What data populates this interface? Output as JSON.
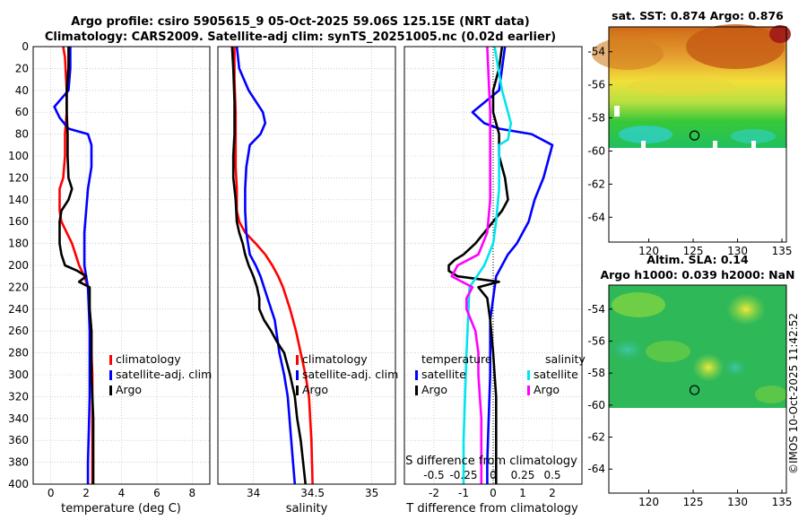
{
  "title": {
    "line1": "Argo profile: csiro 5905615_9 05-Oct-2025 59.06S 125.15E (NRT data)",
    "line2": "Climatology: CARS2009. Satellite-adj clim: synTS_20251005.nc (0.02d earlier)"
  },
  "watermark": "©IMOS 10-Oct-2025 11:42:52",
  "colors": {
    "climatology": "#ff0000",
    "satellite": "#0000ff",
    "argo": "#000000",
    "salinity_sat": "#00e5ee",
    "salinity_argo": "#ff00ff"
  },
  "chart_data": [
    {
      "type": "line",
      "name": "temperature",
      "xlabel": "temperature (deg C)",
      "xlim": [
        -1,
        9
      ],
      "ylim": [
        400,
        0
      ],
      "xticks": [
        0,
        2,
        4,
        6,
        8
      ],
      "yticks": [
        0,
        20,
        40,
        60,
        80,
        100,
        120,
        140,
        160,
        180,
        200,
        220,
        240,
        260,
        280,
        300,
        320,
        340,
        360,
        380,
        400
      ],
      "legend": [
        "climatology",
        "satellite-adj. clim",
        "Argo"
      ],
      "series": [
        {
          "name": "climatology",
          "color": "#ff0000",
          "x": [
            0.7,
            0.8,
            0.9,
            0.9,
            0.8,
            0.8,
            0.7,
            0.5,
            0.5,
            0.5,
            0.6,
            0.9,
            1.2,
            1.4,
            1.6,
            1.9,
            2.1,
            2.2,
            2.3,
            2.3,
            2.35,
            2.35,
            2.35,
            2.35,
            2.35
          ],
          "y": [
            0,
            10,
            40,
            60,
            80,
            100,
            120,
            130,
            140,
            150,
            160,
            170,
            180,
            190,
            200,
            210,
            220,
            240,
            260,
            280,
            300,
            320,
            350,
            380,
            400
          ]
        },
        {
          "name": "satellite-adj. clim",
          "color": "#0000ff",
          "x": [
            1.1,
            1.1,
            1.0,
            0.2,
            0.5,
            1.0,
            2.1,
            2.3,
            2.3,
            2.1,
            2.0,
            1.9,
            1.9,
            1.9,
            2.0,
            2.1,
            2.15,
            2.2,
            2.2,
            2.2,
            2.2,
            2.15,
            2.1,
            2.1
          ],
          "y": [
            0,
            20,
            40,
            55,
            65,
            75,
            80,
            90,
            110,
            130,
            150,
            170,
            190,
            200,
            210,
            220,
            240,
            260,
            280,
            300,
            320,
            350,
            380,
            400
          ]
        },
        {
          "name": "Argo",
          "color": "#000000",
          "x": [
            1.0,
            1.0,
            0.9,
            0.9,
            0.95,
            0.95,
            1.0,
            1.2,
            1.0,
            0.6,
            0.5,
            0.5,
            0.5,
            0.6,
            0.8,
            1.5,
            2.0,
            1.6,
            2.2,
            2.2,
            2.3,
            2.3,
            2.3,
            2.35,
            2.4,
            2.4,
            2.4,
            2.4
          ],
          "y": [
            0,
            20,
            40,
            60,
            80,
            100,
            120,
            130,
            140,
            150,
            160,
            170,
            180,
            190,
            200,
            205,
            210,
            215,
            220,
            240,
            260,
            280,
            300,
            320,
            340,
            360,
            380,
            400
          ]
        }
      ]
    },
    {
      "type": "line",
      "name": "salinity",
      "xlabel": "salinity",
      "xlim": [
        33.7,
        35.2
      ],
      "ylim": [
        400,
        0
      ],
      "xticks": [
        34,
        34.5,
        35
      ],
      "legend": [
        "climatology",
        "satellite-adj. clim",
        "Argo"
      ],
      "series": [
        {
          "name": "climatology",
          "color": "#ff0000",
          "x": [
            33.84,
            33.84,
            33.85,
            33.85,
            33.85,
            33.86,
            33.86,
            33.88,
            33.93,
            34.02,
            34.1,
            34.16,
            34.21,
            34.25,
            34.31,
            34.36,
            34.4,
            34.44,
            34.47,
            34.49,
            34.5
          ],
          "y": [
            0,
            30,
            60,
            90,
            110,
            130,
            150,
            160,
            170,
            180,
            190,
            200,
            210,
            220,
            240,
            260,
            280,
            300,
            320,
            360,
            400
          ]
        },
        {
          "name": "satellite-adj. clim",
          "color": "#0000ff",
          "x": [
            33.86,
            33.88,
            33.96,
            34.08,
            34.1,
            34.06,
            33.97,
            33.94,
            33.93,
            33.93,
            33.94,
            33.97,
            34.02,
            34.06,
            34.12,
            34.18,
            34.22,
            34.26,
            34.29,
            34.32,
            34.35
          ],
          "y": [
            0,
            20,
            40,
            60,
            70,
            80,
            90,
            110,
            130,
            150,
            170,
            190,
            200,
            210,
            230,
            250,
            280,
            300,
            320,
            360,
            400
          ]
        },
        {
          "name": "Argo",
          "color": "#000000",
          "x": [
            33.82,
            33.83,
            33.84,
            33.84,
            33.83,
            33.83,
            33.85,
            33.86,
            33.88,
            33.91,
            33.93,
            33.96,
            33.98,
            34.0,
            34.03,
            34.05,
            34.05,
            34.09,
            34.15,
            34.2,
            34.26,
            34.31,
            34.35,
            34.37,
            34.4,
            34.44
          ],
          "y": [
            0,
            20,
            50,
            80,
            100,
            120,
            140,
            160,
            170,
            180,
            190,
            200,
            205,
            210,
            220,
            230,
            240,
            250,
            260,
            270,
            280,
            300,
            320,
            340,
            360,
            400
          ]
        }
      ]
    },
    {
      "type": "line",
      "name": "difference",
      "xlabel": "T difference from climatology",
      "top_label": "S difference from climatology",
      "xlim": [
        -3,
        3
      ],
      "ylim": [
        400,
        0
      ],
      "xticks": [
        -2,
        -1,
        0,
        1,
        2
      ],
      "top_ticks": [
        -0.5,
        -0.25,
        0,
        0.25,
        0.5
      ],
      "legend_titles": [
        "temperature",
        "salinity"
      ],
      "legend": [
        "satellite",
        "Argo",
        "satellite",
        "Argo"
      ],
      "series": [
        {
          "name": "temperature satellite",
          "color": "#0000ff",
          "x": [
            0.4,
            0.3,
            0.2,
            -0.7,
            -0.3,
            0.2,
            1.3,
            2.0,
            1.9,
            1.7,
            1.4,
            1.2,
            1.0,
            0.8,
            0.5,
            0.3,
            0.1,
            0.0,
            -0.1,
            -0.1,
            -0.1,
            -0.15,
            -0.2,
            -0.2
          ],
          "y": [
            0,
            20,
            40,
            60,
            70,
            75,
            80,
            90,
            100,
            120,
            140,
            160,
            170,
            180,
            190,
            200,
            210,
            230,
            250,
            280,
            300,
            340,
            380,
            400
          ]
        },
        {
          "name": "temperature Argo",
          "color": "#000000",
          "x": [
            0.3,
            0.2,
            0.0,
            0.0,
            0.2,
            0.2,
            0.4,
            0.5,
            0.3,
            0.0,
            -0.3,
            -0.6,
            -1.0,
            -1.3,
            -1.5,
            -1.5,
            -1.2,
            0.2,
            -0.5,
            -0.2,
            -0.1,
            0.0,
            0.05,
            0.1,
            0.1,
            0.1
          ],
          "y": [
            0,
            20,
            40,
            60,
            80,
            100,
            120,
            140,
            150,
            160,
            170,
            180,
            190,
            195,
            200,
            205,
            210,
            215,
            220,
            230,
            250,
            280,
            300,
            320,
            360,
            400
          ]
        },
        {
          "name": "salinity satellite",
          "color": "#00e5ee",
          "x": [
            0.05,
            0.3,
            0.6,
            0.5,
            0.2,
            0.2,
            0.1,
            0.0,
            -0.3,
            -0.8,
            -0.9,
            -0.95,
            -1.0,
            -1.0
          ],
          "y": [
            0,
            40,
            70,
            85,
            90,
            130,
            160,
            180,
            200,
            220,
            280,
            320,
            360,
            400
          ]
        },
        {
          "name": "salinity Argo",
          "color": "#ff00ff",
          "x": [
            -0.2,
            -0.15,
            -0.1,
            -0.1,
            -0.1,
            -0.2,
            -0.5,
            -1.2,
            -1.4,
            -0.7,
            -0.9,
            -0.9,
            -0.6,
            -0.5,
            -0.5,
            -0.4,
            -0.4
          ],
          "y": [
            0,
            30,
            60,
            100,
            140,
            170,
            190,
            200,
            210,
            220,
            230,
            240,
            260,
            280,
            300,
            340,
            400
          ]
        }
      ]
    },
    {
      "type": "heatmap",
      "name": "sst-map",
      "title": "sat. SST: 0.874 Argo: 0.876",
      "xticks": [
        120,
        125,
        130,
        135
      ],
      "yticks": [
        -54,
        -56,
        -58,
        -60,
        -62,
        -64
      ],
      "xlim": [
        115.5,
        135.5
      ],
      "ylim": [
        -65.5,
        -52.5
      ],
      "marker": [
        125.15,
        -59.06
      ]
    },
    {
      "type": "heatmap",
      "name": "sla-map",
      "title_line1": "Altim. SLA: 0.14",
      "title_line2": "Argo h1000: 0.039 h2000: NaN",
      "xticks": [
        120,
        125,
        130,
        135
      ],
      "yticks": [
        -54,
        -56,
        -58,
        -60,
        -62,
        -64
      ],
      "xlim": [
        115.5,
        135.5
      ],
      "ylim": [
        -65.5,
        -52.5
      ],
      "marker": [
        125.15,
        -59.06
      ]
    }
  ]
}
